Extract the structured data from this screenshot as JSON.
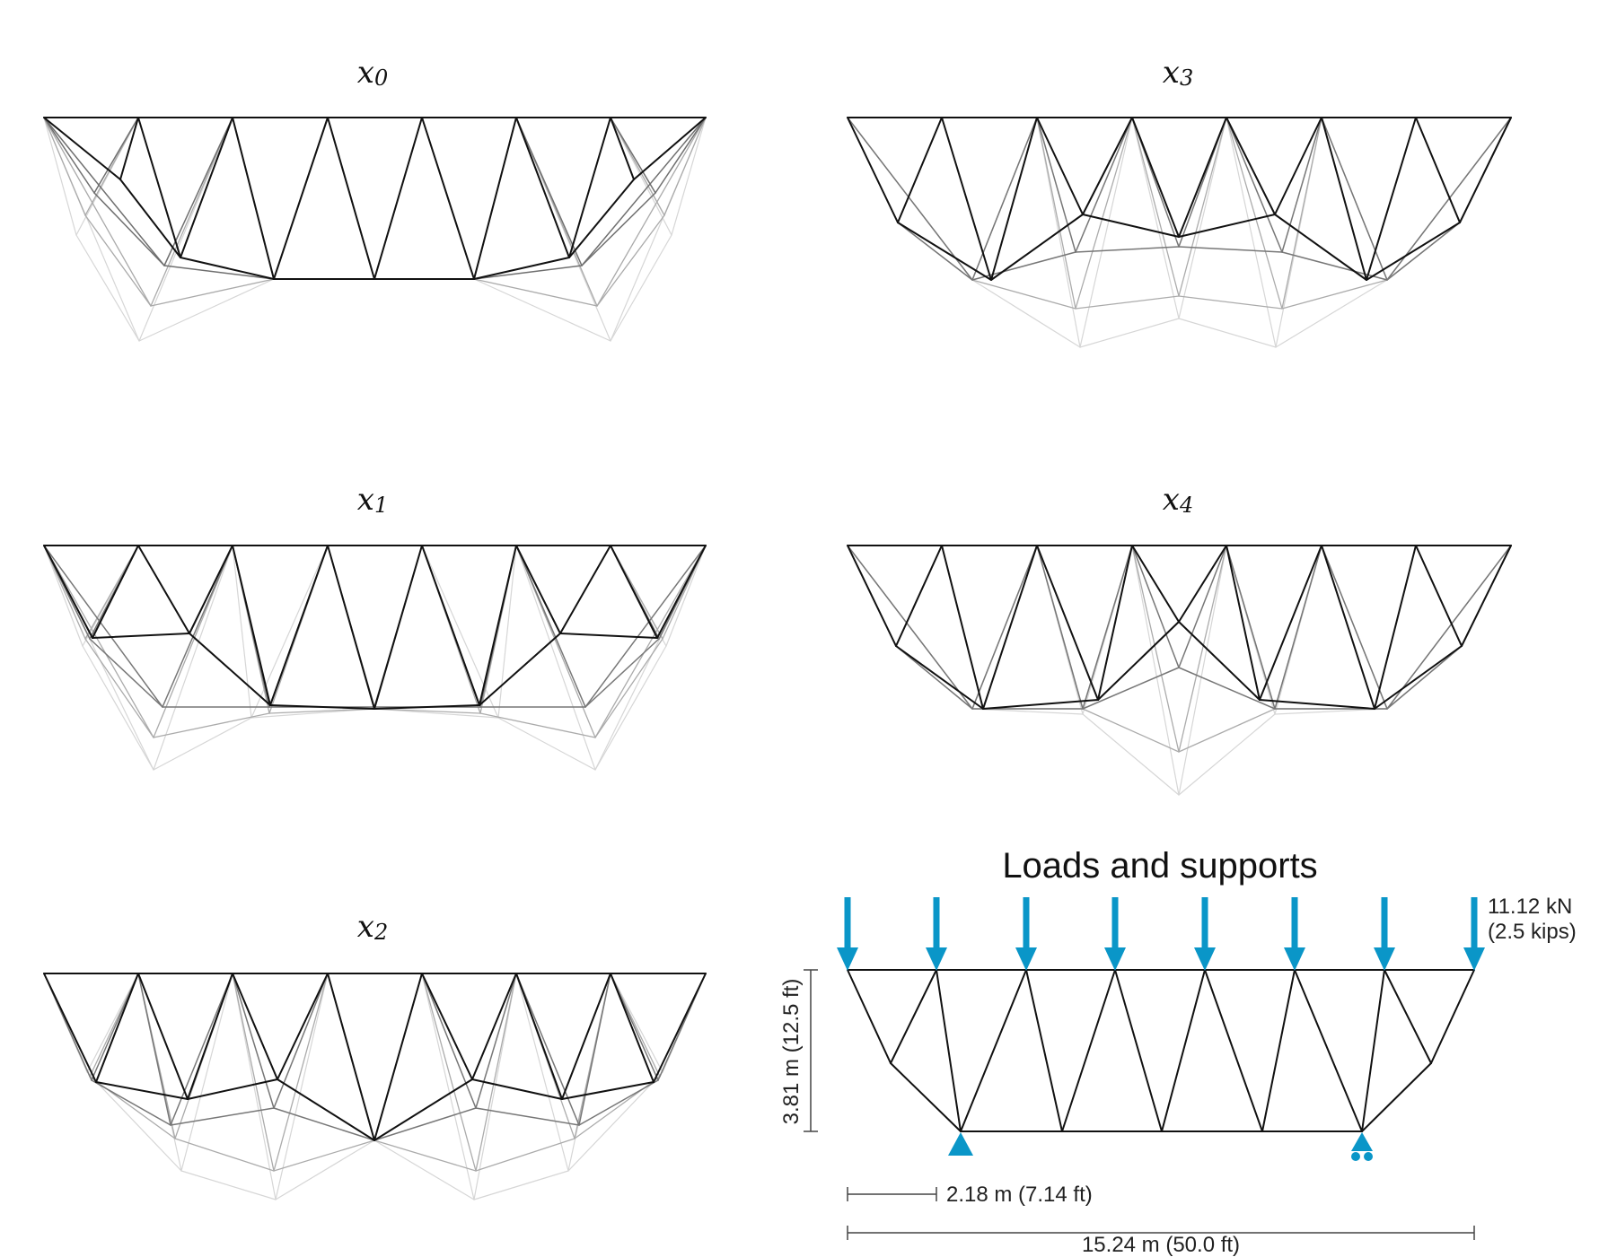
{
  "panels": [
    {
      "label": "x0"
    },
    {
      "label": "x1"
    },
    {
      "label": "x2"
    },
    {
      "label": "x3"
    },
    {
      "label": "x4"
    }
  ],
  "loads_panel": {
    "title": "Loads and supports",
    "load_label_line1": "11.12 kN",
    "load_label_line2": "(2.5 kips)",
    "height_label": "3.81 m (12.5 ft)",
    "bay_label": "2.18 m (7.14 ft)",
    "span_label": "15.24 m (50.0 ft)"
  },
  "colors": {
    "accent": "#0a96c8",
    "member": "#111111"
  }
}
